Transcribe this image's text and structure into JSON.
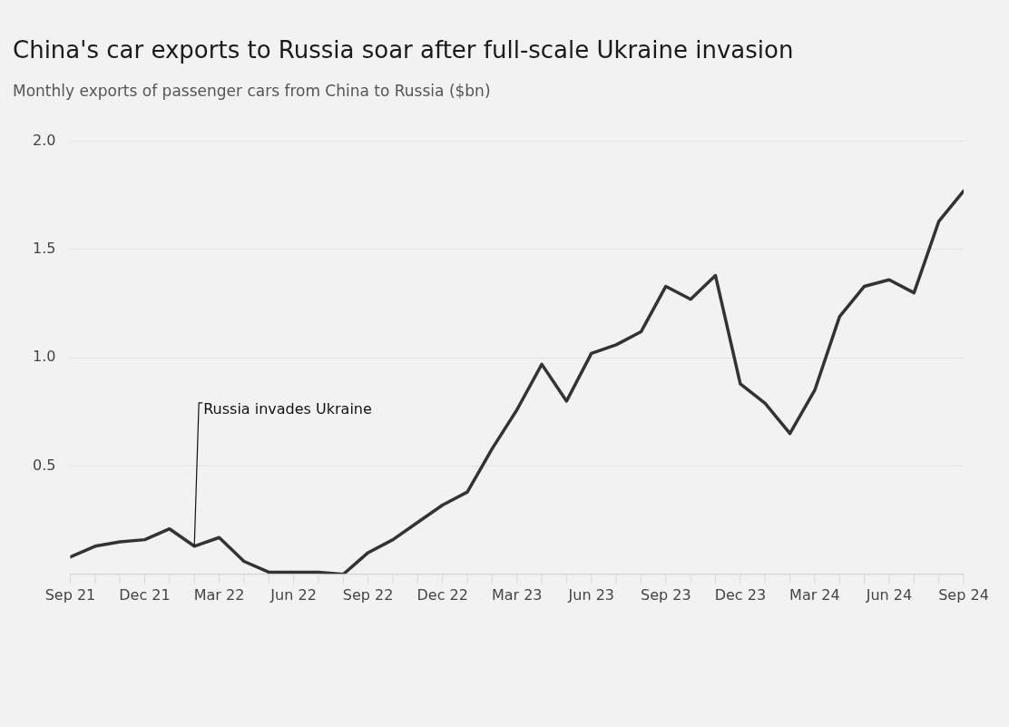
{
  "chart_data": {
    "type": "line",
    "title": "China's car exports to Russia soar after full-scale Ukraine invasion",
    "subtitle": "Monthly exports of passenger cars from China to Russia ($bn)",
    "x": [
      "2021-09",
      "2021-10",
      "2021-11",
      "2021-12",
      "2022-01",
      "2022-02",
      "2022-03",
      "2022-04",
      "2022-05",
      "2022-06",
      "2022-07",
      "2022-08",
      "2022-09",
      "2022-10",
      "2022-11",
      "2022-12",
      "2023-01",
      "2023-02",
      "2023-03",
      "2023-04",
      "2023-05",
      "2023-06",
      "2023-07",
      "2023-08",
      "2023-09",
      "2023-10",
      "2023-11",
      "2023-12",
      "2024-01",
      "2024-02",
      "2024-03",
      "2024-04",
      "2024-05",
      "2024-06",
      "2024-07",
      "2024-08",
      "2024-09"
    ],
    "series": [
      {
        "color": "#333333",
        "values": [
          0.08,
          0.13,
          0.15,
          0.16,
          0.21,
          0.13,
          0.17,
          0.06,
          0.01,
          0.01,
          0.01,
          0.0,
          0.1,
          0.16,
          0.24,
          0.32,
          0.38,
          0.58,
          0.76,
          0.97,
          0.8,
          1.02,
          1.06,
          1.12,
          1.33,
          1.27,
          1.38,
          0.88,
          0.79,
          0.65,
          0.85,
          1.19,
          1.33,
          1.36,
          1.3,
          1.63,
          1.77
        ]
      }
    ],
    "xlim": [
      "2021-09",
      "2024-09"
    ],
    "xticks": [
      {
        "value": "2021-09",
        "label": "Sep 21"
      },
      {
        "value": "2021-12",
        "label": "Dec 21"
      },
      {
        "value": "2022-03",
        "label": "Mar 22"
      },
      {
        "value": "2022-06",
        "label": "Jun 22"
      },
      {
        "value": "2022-09",
        "label": "Sep 22"
      },
      {
        "value": "2022-12",
        "label": "Dec 22"
      },
      {
        "value": "2023-03",
        "label": "Mar 23"
      },
      {
        "value": "2023-06",
        "label": "Jun 23"
      },
      {
        "value": "2023-09",
        "label": "Sep 23"
      },
      {
        "value": "2023-12",
        "label": "Dec 23"
      },
      {
        "value": "2024-03",
        "label": "Mar 24"
      },
      {
        "value": "2024-06",
        "label": "Jun 24"
      },
      {
        "value": "2024-09",
        "label": "Sep 24"
      }
    ],
    "ylim": [
      0,
      2.0
    ],
    "yticks": [
      {
        "value": 0,
        "label": null
      },
      {
        "value": 0.5,
        "label": "0.5"
      },
      {
        "value": 1.0,
        "label": "1.0"
      },
      {
        "value": 1.5,
        "label": "1.5"
      },
      {
        "value": 2.0,
        "label": "2.0"
      }
    ],
    "grid": "y",
    "legend": false,
    "marker": "none",
    "line_style": "solid",
    "annotations": [
      {
        "text": "Russia invades Ukraine",
        "x": "2022-02",
        "y": 0.13
      }
    ]
  }
}
